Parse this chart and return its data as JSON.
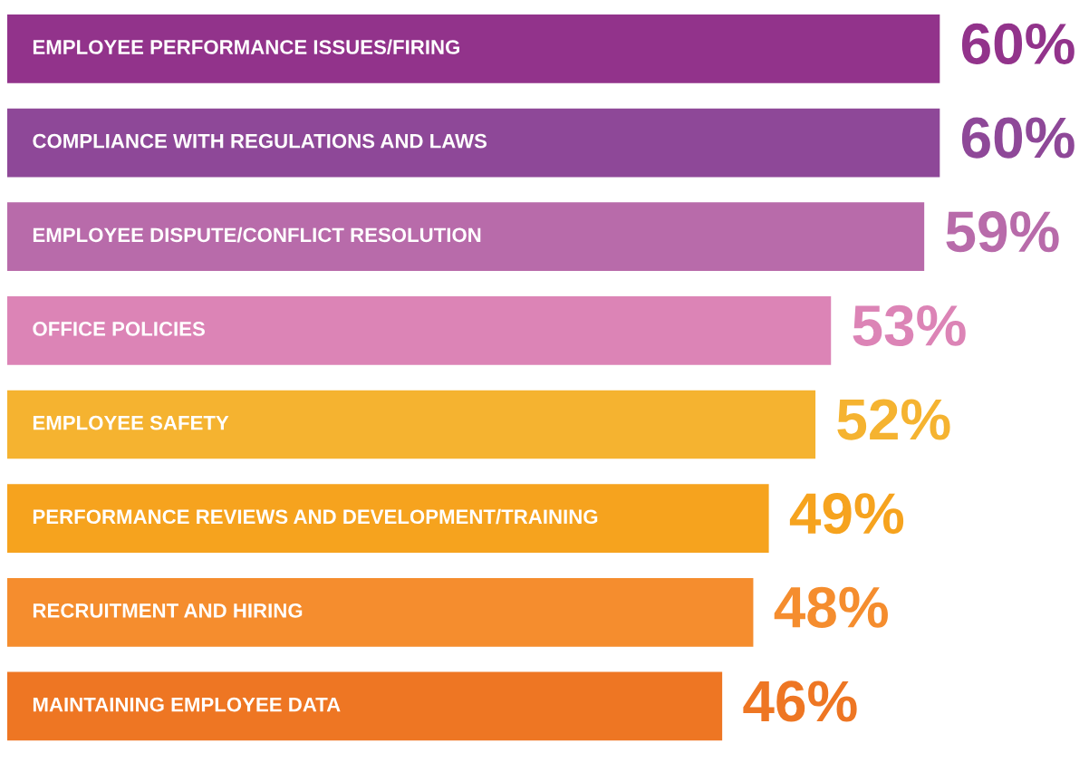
{
  "chart_data": {
    "type": "bar",
    "orientation": "horizontal",
    "categories": [
      "EMPLOYEE PERFORMANCE ISSUES/FIRING",
      "COMPLIANCE WITH REGULATIONS AND LAWS",
      "EMPLOYEE DISPUTE/CONFLICT RESOLUTION",
      "OFFICE POLICIES",
      "EMPLOYEE SAFETY",
      "PERFORMANCE REVIEWS AND DEVELOPMENT/TRAINING",
      "RECRUITMENT AND HIRING",
      "MAINTAINING EMPLOYEE DATA"
    ],
    "values": [
      60,
      60,
      59,
      53,
      52,
      49,
      48,
      46
    ],
    "value_labels": [
      "60%",
      "60%",
      "59%",
      "53%",
      "52%",
      "49%",
      "48%",
      "46%"
    ],
    "colors": [
      "#92338b",
      "#8e4898",
      "#b86baa",
      "#dc84b6",
      "#f5b330",
      "#f6a31e",
      "#f58d2e",
      "#ee7623"
    ],
    "data_labels": false
  }
}
